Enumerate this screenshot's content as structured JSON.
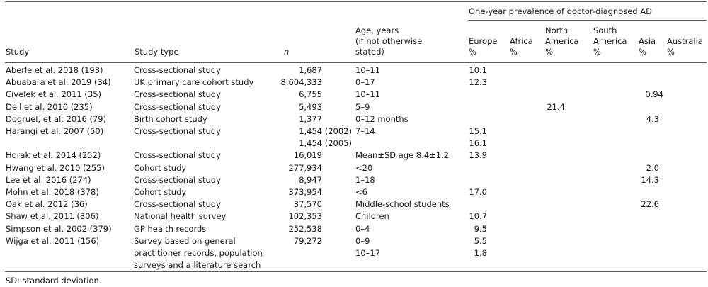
{
  "table": {
    "spanning_header": "One-year prevalence of doctor-diagnosed AD",
    "headers": {
      "study": "Study",
      "study_type": "Study type",
      "n": "n",
      "age": "Age, years\n(if not otherwise\nstated)",
      "regions": [
        "Europe\n%",
        "Africa\n%",
        "North\nAmerica\n%",
        "South\nAmerica\n%",
        "Asia\n%",
        "Australia\n%"
      ]
    },
    "rows": [
      {
        "study": "Aberle et al. 2018 (193)",
        "type": "Cross-sectional study",
        "n": "1,687",
        "age": "10–11",
        "europe": "10.1"
      },
      {
        "study": "Abuabara et al. 2019 (34)",
        "type": "UK primary care cohort study",
        "n": "8,604,333",
        "age": "0–17",
        "europe": "12.3"
      },
      {
        "study": "Civelek et al. 2011 (35)",
        "type": "Cross-sectional study",
        "n": "6,755",
        "age": "10–11",
        "asia": "0.94"
      },
      {
        "study": "Dell et al. 2010 (235)",
        "type": "Cross-sectional study",
        "n": "5,493",
        "age": "5–9",
        "north_america": "21.4"
      },
      {
        "study": "Dogruel, et al. 2016 (79)",
        "type": "Birth cohort study",
        "n": "1,377",
        "age": "0–12 months",
        "asia": "4.3"
      },
      {
        "study": "Harangi et al. 2007 (50)",
        "type": "Cross-sectional study",
        "n": "1,454 (2002)\n1,454 (2005)",
        "age": "7–14",
        "europe": "15.1\n16.1"
      },
      {
        "study": "Horak et al. 2014 (252)",
        "type": "Cross-sectional study",
        "n": "16,019",
        "age": "Mean±SD age 8.4±1.2",
        "europe": "13.9"
      },
      {
        "study": "Hwang et al. 2010 (255)",
        "type": "Cohort study",
        "n": "277,934",
        "age": "<20",
        "asia": "2.0"
      },
      {
        "study": "Lee et al. 2016 (274)",
        "type": "Cross-sectional study",
        "n": "8,947",
        "age": "1–18",
        "asia": "14.3"
      },
      {
        "study": "Mohn et al. 2018 (378)",
        "type": "Cohort study",
        "n": "373,954",
        "age": "<6",
        "europe": "17.0"
      },
      {
        "study": "Oak et al. 2012 (36)",
        "type": "Cross-sectional study",
        "n": "37,570",
        "age": "Middle-school students",
        "asia": "22.6"
      },
      {
        "study": "Shaw et al. 2011 (306)",
        "type": "National health survey",
        "n": "102,353",
        "age": "Children",
        "europe": "10.7"
      },
      {
        "study": "Simpson et al. 2002 (379)",
        "type": "GP health records",
        "n": "252,538",
        "age": "0–4",
        "europe": "9.5"
      },
      {
        "study": "Wijga et al. 2011 (156)",
        "type": "Survey based on general\npractitioner records, population\nsurveys and a literature search",
        "n": "79,272",
        "age": "0–9\n10–17",
        "europe": "5.5\n1.8"
      }
    ],
    "footnote": "SD: standard deviation."
  }
}
